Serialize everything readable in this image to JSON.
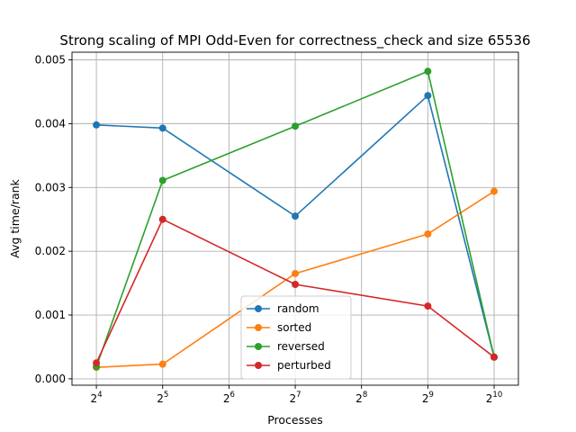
{
  "chart_data": {
    "type": "line",
    "title": "Strong scaling of MPI Odd-Even for correctness_check and size 65536",
    "xlabel": "Processes",
    "ylabel": "Avg time/rank",
    "x_scale": "log2",
    "x": [
      16,
      32,
      128,
      512,
      1024
    ],
    "xlim": [
      12.4,
      1320
    ],
    "ylim": [
      -0.0001,
      0.00512
    ],
    "x_ticks": [
      {
        "value": 16,
        "base": "2",
        "exp": "4"
      },
      {
        "value": 32,
        "base": "2",
        "exp": "5"
      },
      {
        "value": 64,
        "base": "2",
        "exp": "6"
      },
      {
        "value": 128,
        "base": "2",
        "exp": "7"
      },
      {
        "value": 256,
        "base": "2",
        "exp": "8"
      },
      {
        "value": 512,
        "base": "2",
        "exp": "9"
      },
      {
        "value": 1024,
        "base": "2",
        "exp": "10"
      }
    ],
    "y_ticks": [
      {
        "value": 0.0,
        "label": "0.000"
      },
      {
        "value": 0.001,
        "label": "0.001"
      },
      {
        "value": 0.002,
        "label": "0.002"
      },
      {
        "value": 0.003,
        "label": "0.003"
      },
      {
        "value": 0.004,
        "label": "0.004"
      },
      {
        "value": 0.005,
        "label": "0.005"
      }
    ],
    "grid": true,
    "legend_position": "bottom-center",
    "series": [
      {
        "name": "random",
        "color": "#1f77b4",
        "values": [
          0.00398,
          0.00393,
          0.00255,
          0.00444,
          0.00034
        ]
      },
      {
        "name": "sorted",
        "color": "#ff7f0e",
        "values": [
          0.00018,
          0.00023,
          0.00165,
          0.00227,
          0.00294
        ]
      },
      {
        "name": "reversed",
        "color": "#2ca02c",
        "values": [
          0.00019,
          0.00311,
          0.00396,
          0.00482,
          0.00034
        ]
      },
      {
        "name": "perturbed",
        "color": "#d62728",
        "values": [
          0.00025,
          0.0025,
          0.00148,
          0.00114,
          0.00034
        ]
      }
    ]
  }
}
